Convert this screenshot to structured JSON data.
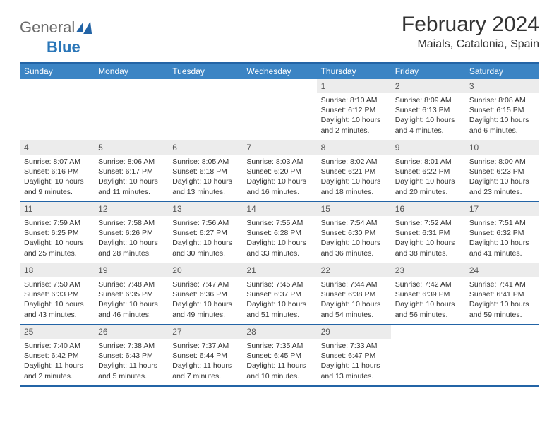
{
  "brand": {
    "part1": "General",
    "part2": "Blue"
  },
  "title": "February 2024",
  "location": "Maials, Catalonia, Spain",
  "colors": {
    "header_bg": "#3b84c4",
    "border": "#2364a6",
    "daynum_bg": "#ececec",
    "text": "#333333",
    "logo_gray": "#6b6b6b"
  },
  "weekdays": [
    "Sunday",
    "Monday",
    "Tuesday",
    "Wednesday",
    "Thursday",
    "Friday",
    "Saturday"
  ],
  "first_weekday_index": 4,
  "days": [
    {
      "n": "1",
      "sunrise": "8:10 AM",
      "sunset": "6:12 PM",
      "dl": "10 hours and 2 minutes."
    },
    {
      "n": "2",
      "sunrise": "8:09 AM",
      "sunset": "6:13 PM",
      "dl": "10 hours and 4 minutes."
    },
    {
      "n": "3",
      "sunrise": "8:08 AM",
      "sunset": "6:15 PM",
      "dl": "10 hours and 6 minutes."
    },
    {
      "n": "4",
      "sunrise": "8:07 AM",
      "sunset": "6:16 PM",
      "dl": "10 hours and 9 minutes."
    },
    {
      "n": "5",
      "sunrise": "8:06 AM",
      "sunset": "6:17 PM",
      "dl": "10 hours and 11 minutes."
    },
    {
      "n": "6",
      "sunrise": "8:05 AM",
      "sunset": "6:18 PM",
      "dl": "10 hours and 13 minutes."
    },
    {
      "n": "7",
      "sunrise": "8:03 AM",
      "sunset": "6:20 PM",
      "dl": "10 hours and 16 minutes."
    },
    {
      "n": "8",
      "sunrise": "8:02 AM",
      "sunset": "6:21 PM",
      "dl": "10 hours and 18 minutes."
    },
    {
      "n": "9",
      "sunrise": "8:01 AM",
      "sunset": "6:22 PM",
      "dl": "10 hours and 20 minutes."
    },
    {
      "n": "10",
      "sunrise": "8:00 AM",
      "sunset": "6:23 PM",
      "dl": "10 hours and 23 minutes."
    },
    {
      "n": "11",
      "sunrise": "7:59 AM",
      "sunset": "6:25 PM",
      "dl": "10 hours and 25 minutes."
    },
    {
      "n": "12",
      "sunrise": "7:58 AM",
      "sunset": "6:26 PM",
      "dl": "10 hours and 28 minutes."
    },
    {
      "n": "13",
      "sunrise": "7:56 AM",
      "sunset": "6:27 PM",
      "dl": "10 hours and 30 minutes."
    },
    {
      "n": "14",
      "sunrise": "7:55 AM",
      "sunset": "6:28 PM",
      "dl": "10 hours and 33 minutes."
    },
    {
      "n": "15",
      "sunrise": "7:54 AM",
      "sunset": "6:30 PM",
      "dl": "10 hours and 36 minutes."
    },
    {
      "n": "16",
      "sunrise": "7:52 AM",
      "sunset": "6:31 PM",
      "dl": "10 hours and 38 minutes."
    },
    {
      "n": "17",
      "sunrise": "7:51 AM",
      "sunset": "6:32 PM",
      "dl": "10 hours and 41 minutes."
    },
    {
      "n": "18",
      "sunrise": "7:50 AM",
      "sunset": "6:33 PM",
      "dl": "10 hours and 43 minutes."
    },
    {
      "n": "19",
      "sunrise": "7:48 AM",
      "sunset": "6:35 PM",
      "dl": "10 hours and 46 minutes."
    },
    {
      "n": "20",
      "sunrise": "7:47 AM",
      "sunset": "6:36 PM",
      "dl": "10 hours and 49 minutes."
    },
    {
      "n": "21",
      "sunrise": "7:45 AM",
      "sunset": "6:37 PM",
      "dl": "10 hours and 51 minutes."
    },
    {
      "n": "22",
      "sunrise": "7:44 AM",
      "sunset": "6:38 PM",
      "dl": "10 hours and 54 minutes."
    },
    {
      "n": "23",
      "sunrise": "7:42 AM",
      "sunset": "6:39 PM",
      "dl": "10 hours and 56 minutes."
    },
    {
      "n": "24",
      "sunrise": "7:41 AM",
      "sunset": "6:41 PM",
      "dl": "10 hours and 59 minutes."
    },
    {
      "n": "25",
      "sunrise": "7:40 AM",
      "sunset": "6:42 PM",
      "dl": "11 hours and 2 minutes."
    },
    {
      "n": "26",
      "sunrise": "7:38 AM",
      "sunset": "6:43 PM",
      "dl": "11 hours and 5 minutes."
    },
    {
      "n": "27",
      "sunrise": "7:37 AM",
      "sunset": "6:44 PM",
      "dl": "11 hours and 7 minutes."
    },
    {
      "n": "28",
      "sunrise": "7:35 AM",
      "sunset": "6:45 PM",
      "dl": "11 hours and 10 minutes."
    },
    {
      "n": "29",
      "sunrise": "7:33 AM",
      "sunset": "6:47 PM",
      "dl": "11 hours and 13 minutes."
    }
  ],
  "labels": {
    "sunrise": "Sunrise:",
    "sunset": "Sunset:",
    "daylight": "Daylight:"
  }
}
